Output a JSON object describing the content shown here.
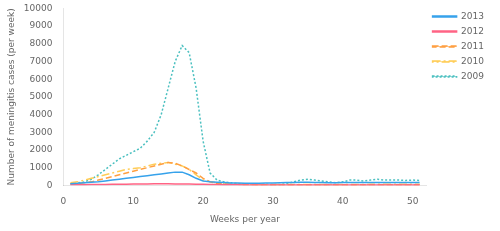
{
  "chart_data": {
    "type": "line",
    "xlabel": "Weeks per year",
    "ylabel": "Number of meningitis cases (per week)",
    "xlim": [
      0,
      52
    ],
    "xticks": [
      0,
      10,
      20,
      30,
      40,
      50
    ],
    "ylim": [
      0,
      10000
    ],
    "yticks": [
      0,
      1000,
      2000,
      3000,
      4000,
      5000,
      6000,
      7000,
      8000,
      9000,
      10000
    ],
    "grid": false,
    "legend": "upper right",
    "x": [
      1,
      2,
      3,
      4,
      5,
      6,
      7,
      8,
      9,
      10,
      11,
      12,
      13,
      14,
      15,
      16,
      17,
      18,
      19,
      20,
      21,
      22,
      23,
      24,
      25,
      26,
      27,
      28,
      29,
      30,
      31,
      32,
      33,
      34,
      35,
      36,
      37,
      38,
      39,
      40,
      41,
      42,
      43,
      44,
      45,
      46,
      47,
      48,
      49,
      50,
      51
    ],
    "series": [
      {
        "name": "2013",
        "line_style": "solid",
        "values": [
          100,
          120,
          150,
          180,
          200,
          250,
          300,
          350,
          400,
          450,
          500,
          550,
          600,
          650,
          700,
          750,
          750,
          600,
          400,
          250,
          200,
          180,
          160,
          140,
          130,
          120,
          120,
          120,
          130,
          140,
          150,
          160,
          170,
          180,
          180,
          170,
          160,
          150,
          150,
          160,
          160,
          160,
          160,
          160,
          160,
          160,
          160,
          160,
          160,
          160,
          160
        ]
      },
      {
        "name": "2012",
        "line_style": "solid",
        "values": [
          30,
          35,
          40,
          45,
          50,
          55,
          60,
          65,
          70,
          75,
          80,
          85,
          90,
          90,
          90,
          85,
          80,
          75,
          70,
          60,
          50,
          45,
          40,
          35,
          30,
          25,
          25,
          25,
          25,
          25,
          25,
          25,
          25,
          25,
          25,
          25,
          25,
          25,
          25,
          25,
          25,
          25,
          25,
          25,
          25,
          25,
          25,
          25,
          25,
          25,
          25
        ]
      },
      {
        "name": "2011",
        "line_style": "dashed",
        "values": [
          80,
          100,
          150,
          200,
          300,
          400,
          500,
          600,
          700,
          800,
          900,
          1000,
          1100,
          1200,
          1300,
          1250,
          1100,
          900,
          700,
          400,
          200,
          100,
          80,
          70,
          60,
          50,
          40,
          35,
          35,
          30,
          30,
          30,
          30,
          30,
          30,
          30,
          30,
          30,
          30,
          30,
          30,
          30,
          30,
          30,
          30,
          30,
          30,
          30,
          30,
          30,
          30
        ]
      },
      {
        "name": "2010",
        "line_style": "dashdot",
        "values": [
          150,
          200,
          300,
          400,
          500,
          600,
          700,
          800,
          900,
          950,
          1000,
          1100,
          1200,
          1250,
          1300,
          1200,
          1100,
          900,
          600,
          300,
          200,
          150,
          100,
          80,
          70,
          60,
          55,
          50,
          50,
          45,
          45,
          45,
          45,
          45,
          45,
          45,
          45,
          45,
          45,
          45,
          50,
          55,
          55,
          60,
          65,
          65,
          65,
          65,
          60,
          65,
          65
        ]
      },
      {
        "name": "2009",
        "line_style": "dotted",
        "values": [
          100,
          150,
          200,
          350,
          600,
          900,
          1200,
          1500,
          1700,
          1900,
          2100,
          2500,
          3000,
          4000,
          5500,
          7000,
          7900,
          7500,
          5500,
          2500,
          700,
          300,
          200,
          150,
          100,
          80,
          70,
          60,
          60,
          50,
          50,
          100,
          200,
          300,
          350,
          300,
          250,
          200,
          150,
          200,
          300,
          300,
          250,
          300,
          350,
          300,
          300,
          300,
          280,
          300,
          280
        ]
      }
    ]
  }
}
